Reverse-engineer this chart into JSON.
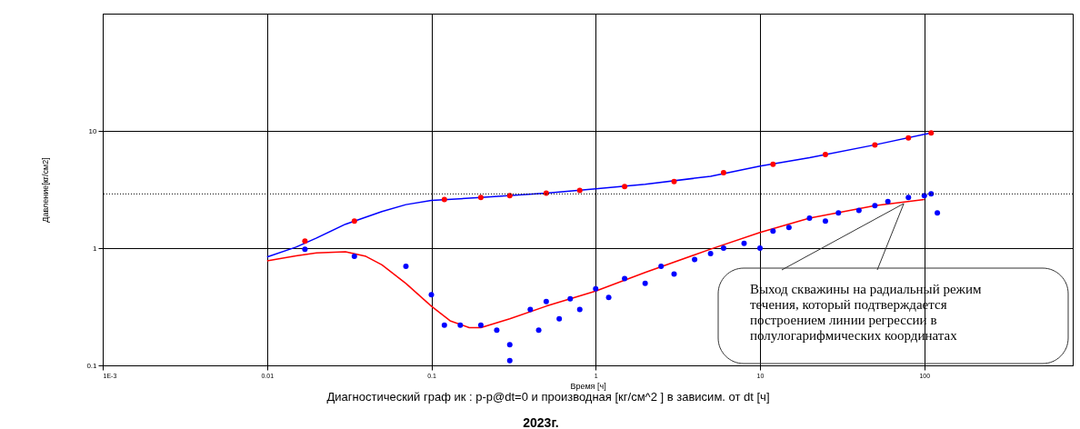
{
  "chart_data": {
    "type": "line",
    "xlabel": "Время [ч]",
    "ylabel": "Давление[кг/см2]",
    "log": "xy",
    "grid": true,
    "xlim": [
      0.001,
      800
    ],
    "xticks": [
      {
        "value": 0.001,
        "label": "1E-3"
      },
      0.01,
      0.1,
      1,
      10,
      100
    ],
    "ylim": [
      0.1,
      100
    ],
    "yticks": [
      0.1,
      1,
      10
    ],
    "ref_lines": [
      {
        "axis": "y",
        "value": 2.9,
        "line_style": "dotted",
        "color": "#000000"
      }
    ],
    "series": [
      {
        "color": "#0000ff",
        "x": [
          0.01,
          0.015,
          0.02,
          0.03,
          0.05,
          0.07,
          0.1,
          0.2,
          0.5,
          1,
          2,
          5,
          10,
          20,
          50,
          110
        ],
        "values": [
          0.84,
          1.02,
          1.22,
          1.6,
          2.05,
          2.35,
          2.55,
          2.7,
          2.95,
          3.2,
          3.5,
          4.1,
          5.0,
          5.9,
          7.6,
          9.6
        ]
      },
      {
        "type": "scatter",
        "color": "#ff0000",
        "x": [
          0.017,
          0.034,
          0.12,
          0.2,
          0.3,
          0.5,
          0.8,
          1.5,
          3,
          6,
          12,
          25,
          50,
          80,
          110
        ],
        "values": [
          1.15,
          1.7,
          2.6,
          2.7,
          2.8,
          2.95,
          3.1,
          3.35,
          3.7,
          4.4,
          5.2,
          6.3,
          7.6,
          8.7,
          9.6
        ]
      },
      {
        "color": "#ff0000",
        "x": [
          0.01,
          0.015,
          0.02,
          0.03,
          0.04,
          0.05,
          0.07,
          0.1,
          0.13,
          0.17,
          0.2,
          0.3,
          0.5,
          1,
          2,
          5,
          10,
          20,
          50,
          100
        ],
        "values": [
          0.78,
          0.86,
          0.91,
          0.93,
          0.85,
          0.72,
          0.5,
          0.32,
          0.24,
          0.21,
          0.21,
          0.25,
          0.32,
          0.43,
          0.62,
          0.98,
          1.36,
          1.8,
          2.3,
          2.6
        ]
      },
      {
        "type": "scatter",
        "color": "#0000ff",
        "x": [
          0.017,
          0.034,
          0.07,
          0.1,
          0.12,
          0.15,
          0.2,
          0.25,
          0.3,
          0.3,
          0.4,
          0.45,
          0.5,
          0.6,
          0.7,
          0.8,
          1,
          1.2,
          1.5,
          2,
          2.5,
          3,
          4,
          5,
          6,
          8,
          10,
          12,
          15,
          20,
          25,
          30,
          40,
          50,
          60,
          80,
          100,
          110,
          120
        ],
        "values": [
          0.98,
          0.85,
          0.7,
          0.4,
          0.22,
          0.22,
          0.22,
          0.2,
          0.15,
          0.11,
          0.3,
          0.2,
          0.35,
          0.25,
          0.37,
          0.3,
          0.45,
          0.38,
          0.55,
          0.5,
          0.7,
          0.6,
          0.8,
          0.9,
          1.0,
          1.1,
          1.0,
          1.4,
          1.5,
          1.8,
          1.7,
          2.0,
          2.1,
          2.3,
          2.5,
          2.7,
          2.8,
          2.9,
          2.0
        ]
      }
    ],
    "annotations": [
      {
        "text": "Выход скважины на радиальный режим\nтечения, который подтверждается\nпостроением линии регрессии в\nполулогарифмических координатах",
        "x": 75,
        "y": 2.4
      },
      "Диагностический граф ик : p-p@dt=0 и производная [кг/см^2 ] в зависим. от dt [ч]",
      "2023г."
    ]
  }
}
